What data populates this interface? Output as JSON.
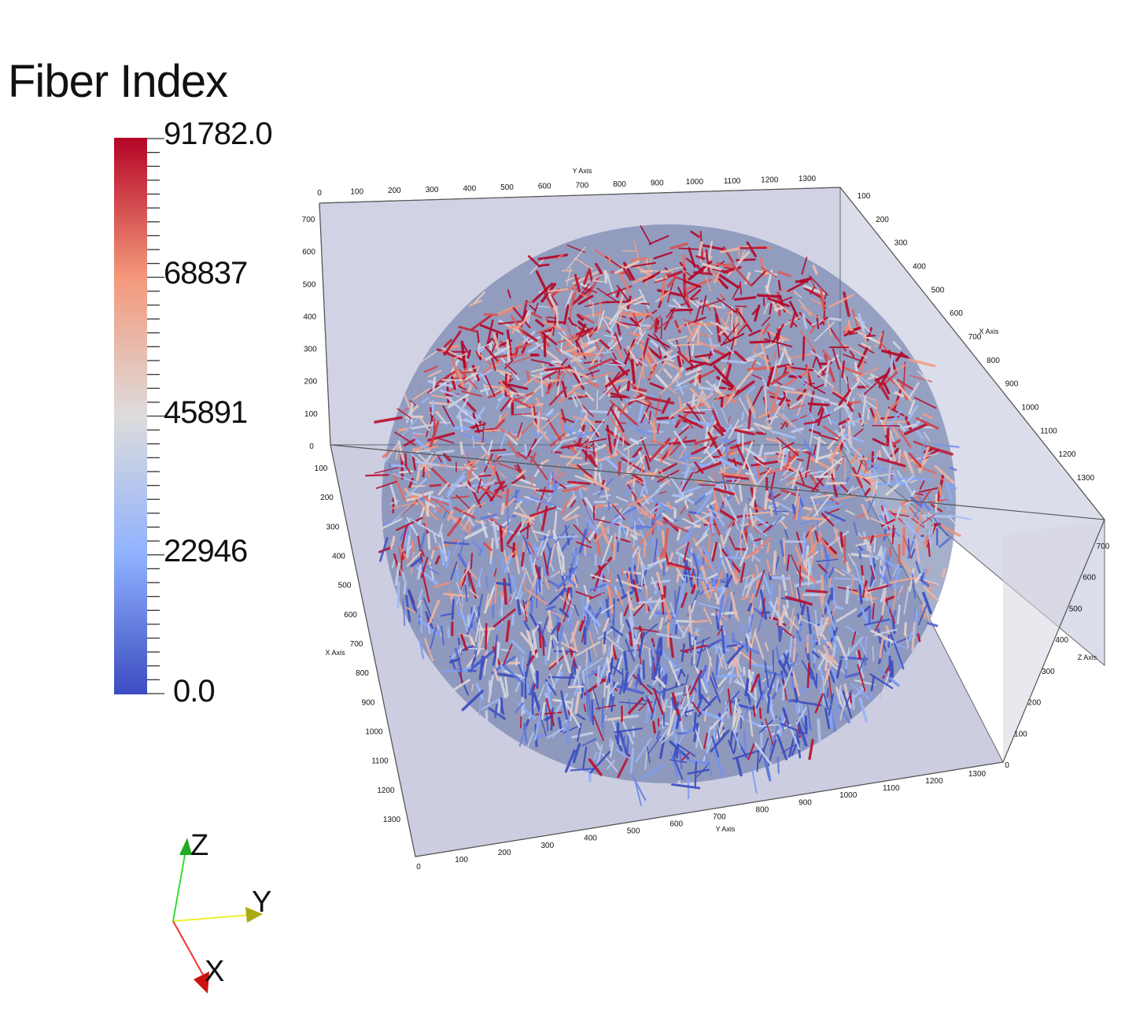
{
  "legend": {
    "title": "Fiber Index",
    "max_label": "91782.0",
    "labels": [
      "68837",
      "45891",
      "22946"
    ],
    "min_label": "0.0",
    "range": [
      0.0,
      91782.0
    ],
    "colormap": [
      "#3b4cc0",
      "#8fb1fe",
      "#dddcdc",
      "#f4987a",
      "#b40426"
    ]
  },
  "axes": {
    "y_axis_title": "Y Axis",
    "x_axis_title": "X Axis",
    "z_axis_title": "Z Axis",
    "y_ticks": [
      "0",
      "100",
      "200",
      "300",
      "400",
      "500",
      "600",
      "700",
      "800",
      "900",
      "1000",
      "1100",
      "1200",
      "1300"
    ],
    "x_ticks": [
      "0",
      "100",
      "200",
      "300",
      "400",
      "500",
      "600",
      "700",
      "800",
      "900",
      "1000",
      "1100",
      "1200",
      "1300"
    ],
    "z_ticks": [
      "0",
      "100",
      "200",
      "300",
      "400",
      "500",
      "600",
      "700"
    ]
  },
  "orientation": {
    "z_label": "Z",
    "y_label": "Y",
    "x_label": "X",
    "z_color": "#22cc22",
    "y_color": "#dddd22",
    "x_color": "#dd2222"
  }
}
